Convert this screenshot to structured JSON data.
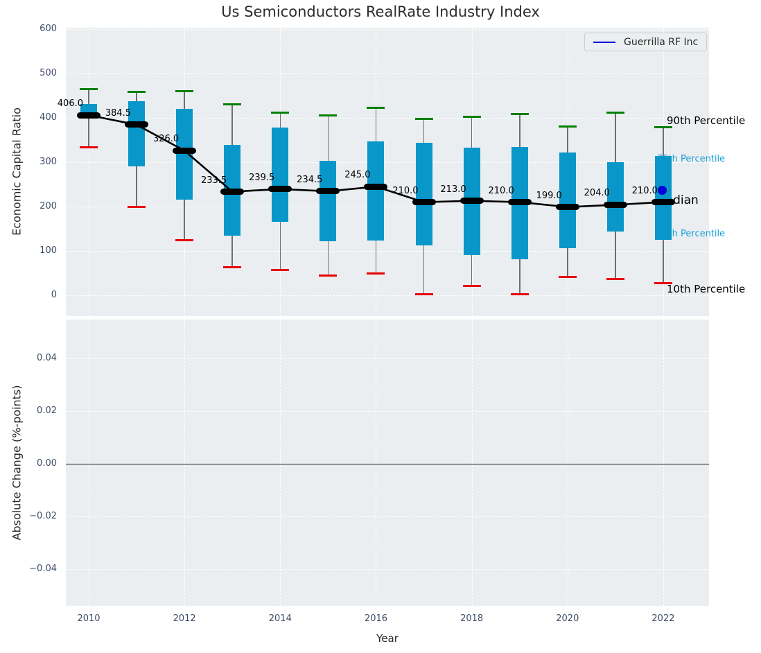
{
  "title": "Us Semiconductors RealRate Industry Index",
  "legend": {
    "label": "Guerrilla RF Inc",
    "line_color": "#0000dd"
  },
  "annotations": [
    {
      "text": "90th Percentile",
      "anchor_value": 392,
      "color": "#000000",
      "size": "large"
    },
    {
      "text": "75th Percentile",
      "anchor_value": 306,
      "color": "#189fd6",
      "size": "small"
    },
    {
      "text": "Median",
      "anchor_value": 211,
      "color": "#000000",
      "size": "median"
    },
    {
      "text": "25th Percentile",
      "anchor_value": 137,
      "color": "#189fd6",
      "size": "small"
    },
    {
      "text": "10th Percentile",
      "anchor_value": 12,
      "color": "#000000",
      "size": "large"
    }
  ],
  "colors": {
    "box_fill": "#0997c9",
    "p90_cap": "#008000",
    "p10_cap": "#e60000",
    "median": "#000000",
    "company_point": "#0000dd",
    "grid": "#ffffff",
    "plot_background": "#ebeef0",
    "tick_text": "#3d4d66"
  },
  "chart_data": [
    {
      "type": "boxplot",
      "title": "Us Semiconductors RealRate Industry Index",
      "ylabel": "Economic Capital Ratio",
      "grid": true,
      "legend_position": "upper right",
      "years": [
        2010,
        2011,
        2012,
        2013,
        2014,
        2015,
        2016,
        2017,
        2018,
        2019,
        2020,
        2021,
        2022
      ],
      "percentile_90": [
        465,
        459,
        460,
        430,
        411,
        406,
        422,
        398,
        403,
        408,
        381,
        412,
        379
      ],
      "q3": [
        432,
        438,
        420,
        339,
        378,
        303,
        347,
        344,
        333,
        334,
        322,
        300,
        314
      ],
      "median": [
        406.0,
        384.5,
        326.0,
        233.5,
        239.5,
        234.5,
        245.0,
        210.0,
        213.0,
        210.0,
        199.0,
        204.0,
        210.0
      ],
      "q1": [
        402,
        291,
        216,
        134,
        165,
        122,
        124,
        113,
        90,
        81,
        107,
        144,
        125
      ],
      "percentile_10": [
        334,
        200,
        125,
        63,
        57,
        45,
        50,
        2,
        21,
        2,
        42,
        36,
        27
      ],
      "median_labels": [
        "406.0",
        "384.5",
        "326.0",
        "233.5",
        "239.5",
        "234.5",
        "245.0",
        "210.0",
        "213.0",
        "210.0",
        "199.0",
        "204.0",
        "210.0"
      ],
      "company_series": {
        "name": "Guerrilla RF Inc",
        "year": 2022,
        "value": 237,
        "color": "#0000dd"
      },
      "yticks": [
        600,
        500,
        400,
        300,
        200,
        100,
        0
      ],
      "xticks": [
        2010,
        2012,
        2014,
        2016,
        2018,
        2020,
        2022
      ],
      "ylim": [
        -45,
        606
      ]
    },
    {
      "type": "line",
      "ylabel": "Absolute Change (%-points)",
      "xlabel": "Year",
      "grid": true,
      "series": [],
      "zero_line": 0,
      "yticks": [
        {
          "label": "0.04",
          "value": 0.04
        },
        {
          "label": "0.02",
          "value": 0.02
        },
        {
          "label": "0.00",
          "value": 0.0
        },
        {
          "label": "−0.02",
          "value": -0.02
        },
        {
          "label": "−0.04",
          "value": -0.04
        }
      ],
      "xticks": [
        2010,
        2012,
        2014,
        2016,
        2018,
        2020,
        2022
      ],
      "ylim": [
        -0.055,
        0.055
      ]
    }
  ]
}
